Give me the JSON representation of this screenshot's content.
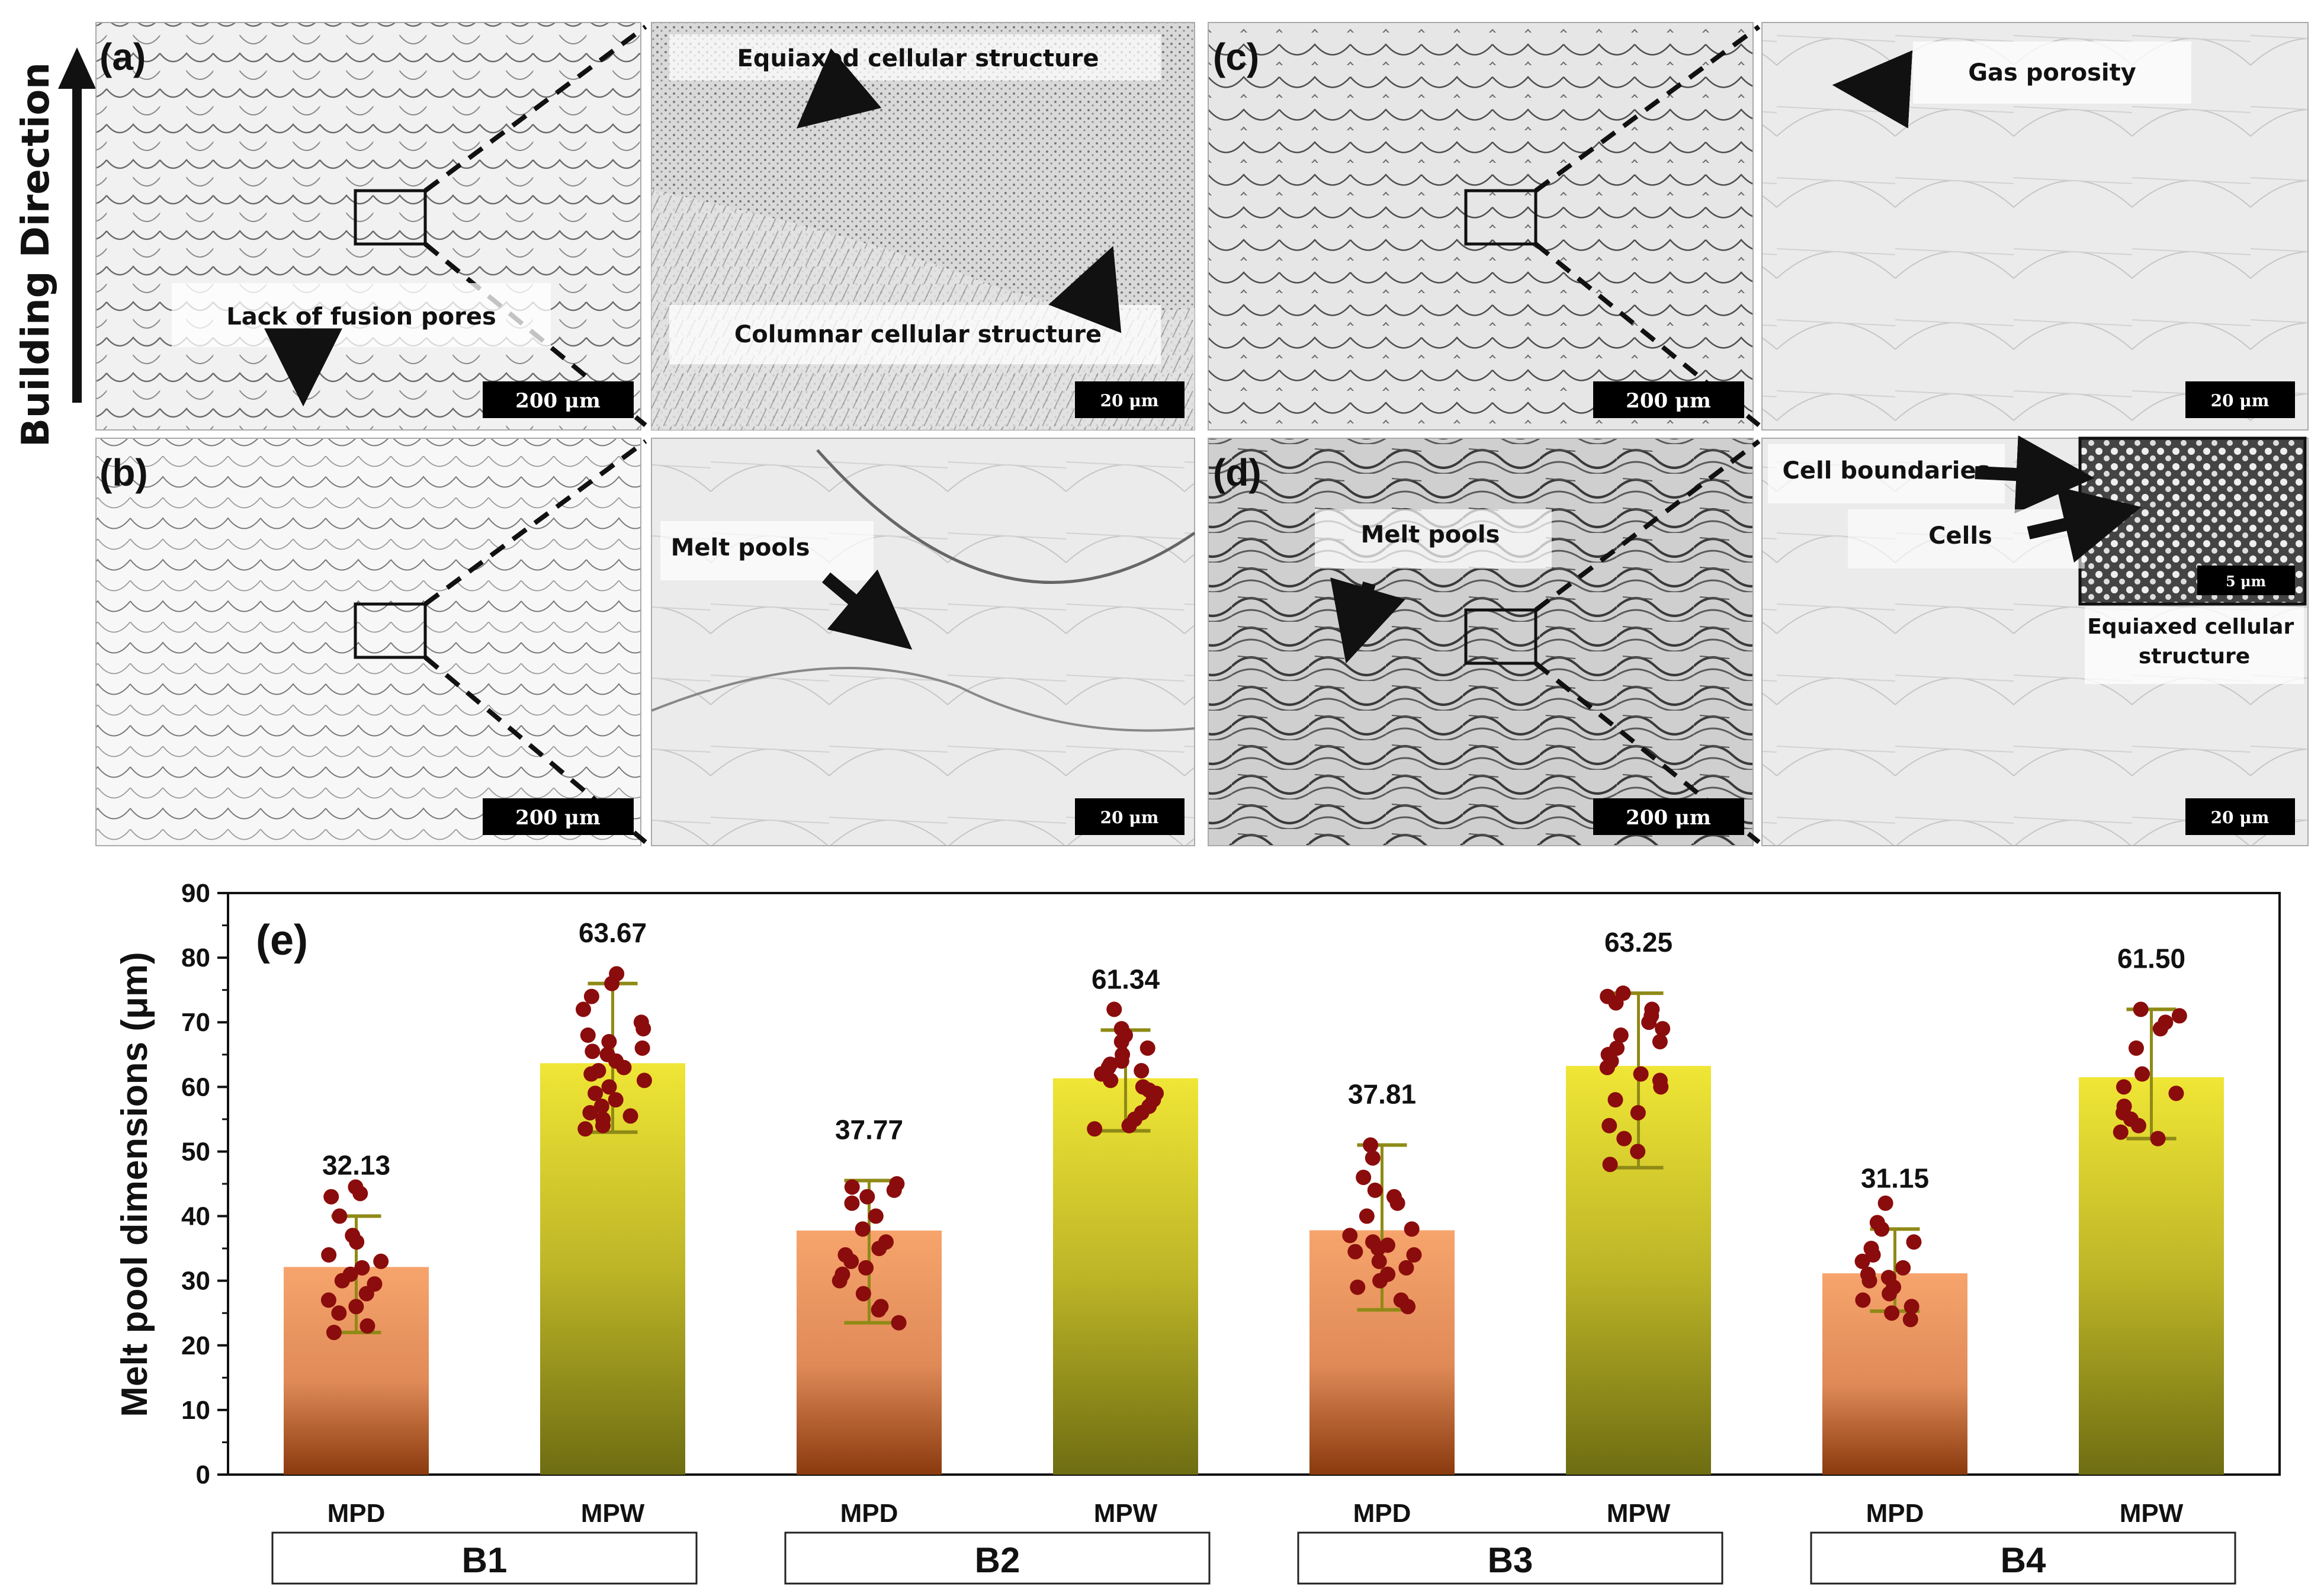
{
  "micrographs": {
    "building_direction": "Building Direction",
    "panels": [
      {
        "id": "a",
        "label": "(a)",
        "scale_low": "200 μm",
        "scale_high": "20 μm",
        "annotations": [
          "Lack of fusion pores",
          "Equiaxed cellular structure",
          "Columnar cellular structure"
        ]
      },
      {
        "id": "b",
        "label": "(b)",
        "scale_low": "200 μm",
        "scale_high": "20 μm",
        "annotations": [
          "Melt pools"
        ]
      },
      {
        "id": "c",
        "label": "(c)",
        "scale_low": "200 μm",
        "scale_high": "20 μm",
        "annotations": [
          "Gas porosity"
        ]
      },
      {
        "id": "d",
        "label": "(d)",
        "scale_low": "200 μm",
        "scale_high": "20 μm",
        "annotations": [
          "Melt pools",
          "Cell boundaries",
          "Cells",
          "Equiaxed cellular structure"
        ],
        "inset_scale": "5 μm"
      }
    ]
  },
  "chart_data": {
    "type": "bar",
    "panel_label": "(e)",
    "ylabel": "Melt pool dimensions (μm)",
    "xlabel": "",
    "ylim": [
      0,
      90
    ],
    "yticks": [
      0,
      10,
      20,
      30,
      40,
      50,
      60,
      70,
      80,
      90
    ],
    "groups": [
      "B1",
      "B2",
      "B3",
      "B4"
    ],
    "categories": [
      "MPD",
      "MPW",
      "MPD",
      "MPW",
      "MPD",
      "MPW",
      "MPD",
      "MPW"
    ],
    "values": [
      32.13,
      63.67,
      37.77,
      61.34,
      37.81,
      63.25,
      31.15,
      61.5
    ],
    "value_labels": [
      "32.13",
      "63.67",
      "37.77",
      "61.34",
      "37.81",
      "63.25",
      "31.15",
      "61.50"
    ],
    "error_low": [
      22,
      53,
      23.5,
      53.2,
      25.5,
      47.5,
      25.3,
      52
    ],
    "error_high": [
      40,
      76,
      45.5,
      68.8,
      51,
      74.5,
      38,
      72
    ],
    "points": [
      [
        44.5,
        43.5,
        43,
        40,
        37,
        36,
        34,
        33,
        32,
        31,
        30,
        29.5,
        28,
        27,
        26,
        25,
        23,
        22
      ],
      [
        77.5,
        76,
        74,
        72,
        70,
        69,
        68,
        67,
        66,
        65.5,
        65,
        64,
        63,
        62.5,
        62,
        61,
        60,
        59,
        58,
        57,
        56,
        55.5,
        55,
        54,
        53.5
      ],
      [
        45,
        44.5,
        44,
        43,
        42,
        40,
        38,
        36,
        35,
        34,
        33,
        32,
        31,
        30,
        28,
        26,
        25.5,
        23.5
      ],
      [
        72,
        69,
        68,
        67,
        66,
        65,
        64,
        63.5,
        63,
        62.5,
        62,
        61,
        60,
        59.5,
        59,
        58,
        57,
        56,
        55,
        54,
        53.5
      ],
      [
        51,
        49,
        46,
        44,
        43,
        42,
        40,
        38,
        37,
        36,
        35.5,
        35,
        34.5,
        34,
        33,
        32,
        31,
        30,
        29,
        27,
        26
      ],
      [
        74.5,
        74,
        73,
        72,
        71,
        70,
        69,
        68,
        67,
        66,
        65,
        64,
        63,
        62,
        61,
        60,
        58,
        56,
        54,
        52,
        50,
        48
      ],
      [
        42,
        39,
        38,
        36,
        35,
        34,
        33,
        32,
        31,
        30.5,
        30,
        29,
        28,
        27,
        26,
        25,
        24
      ],
      [
        72,
        71,
        70,
        69,
        66,
        62,
        60,
        59,
        57,
        56,
        55,
        54,
        53,
        52
      ]
    ],
    "colors": {
      "mpd_top": "#f6a46c",
      "mpd_bottom": "#8a3a0e",
      "mpw_top": "#f0e636",
      "mpw_bottom": "#6e6d12",
      "errorbar": "#8f8a16",
      "points": "#8b0c0c"
    }
  }
}
